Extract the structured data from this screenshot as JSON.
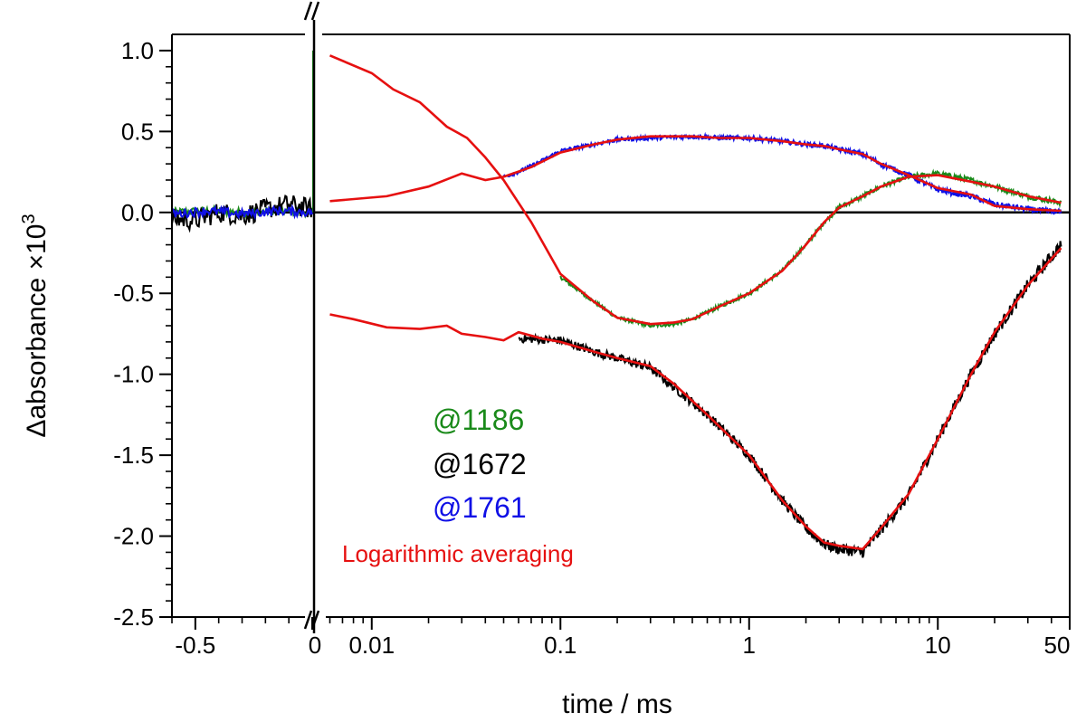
{
  "chart_data": {
    "type": "line",
    "title": "",
    "xlabel": "time / ms",
    "ylabel_main": "Δabsorbance ×10",
    "ylabel_exp": "3",
    "x_scale": "broken: linear pre-trigger segment, logarithmic post-trigger segment",
    "xlim_linear": [
      -0.6,
      0
    ],
    "xlim_log": [
      0.005,
      50
    ],
    "ylim": [
      -2.5,
      1.1
    ],
    "y_ticks": [
      {
        "value": 1.0,
        "label": "1.0"
      },
      {
        "value": 0.5,
        "label": "0.5"
      },
      {
        "value": 0.0,
        "label": "0.0"
      },
      {
        "value": -0.5,
        "label": "-0.5"
      },
      {
        "value": -1.0,
        "label": "-1.0"
      },
      {
        "value": -1.5,
        "label": "-1.5"
      },
      {
        "value": -2.0,
        "label": "-2.0"
      },
      {
        "value": -2.5,
        "label": "-2.5"
      }
    ],
    "x_ticks_linear": [
      {
        "value": -0.5,
        "label": "-0.5"
      },
      {
        "value": 0,
        "label": "0"
      }
    ],
    "x_ticks_log": [
      {
        "value": 0.01,
        "label": "0.01"
      },
      {
        "value": 0.1,
        "label": "0.1"
      },
      {
        "value": 1,
        "label": "1"
      },
      {
        "value": 10,
        "label": "10"
      },
      {
        "value": 50,
        "label": "50"
      }
    ],
    "series": [
      {
        "name": "@1186",
        "color": "#1a8a1a",
        "pre": [
          [
            -0.6,
            0.0
          ],
          [
            -0.45,
            0.01
          ],
          [
            -0.3,
            0.0
          ],
          [
            -0.15,
            0.01
          ],
          [
            0,
            0.0
          ]
        ],
        "log": [
          [
            0.1,
            -0.4
          ],
          [
            0.15,
            -0.55
          ],
          [
            0.2,
            -0.65
          ],
          [
            0.3,
            -0.7
          ],
          [
            0.4,
            -0.69
          ],
          [
            0.5,
            -0.66
          ],
          [
            0.7,
            -0.58
          ],
          [
            1,
            -0.5
          ],
          [
            1.5,
            -0.36
          ],
          [
            2,
            -0.2
          ],
          [
            2.5,
            -0.06
          ],
          [
            3,
            0.03
          ],
          [
            4,
            0.1
          ],
          [
            5,
            0.16
          ],
          [
            7,
            0.22
          ],
          [
            10,
            0.24
          ],
          [
            15,
            0.2
          ],
          [
            20,
            0.16
          ],
          [
            30,
            0.1
          ],
          [
            45,
            0.06
          ]
        ],
        "noise": 0.016
      },
      {
        "name": "@1672",
        "color": "#000000",
        "pre": [
          [
            -0.6,
            -0.04
          ],
          [
            -0.5,
            -0.05
          ],
          [
            -0.4,
            0.0
          ],
          [
            -0.3,
            -0.02
          ],
          [
            -0.2,
            0.02
          ],
          [
            -0.1,
            0.05
          ],
          [
            0,
            0.02
          ]
        ],
        "log": [
          [
            0.06,
            -0.78
          ],
          [
            0.1,
            -0.79
          ],
          [
            0.15,
            -0.86
          ],
          [
            0.2,
            -0.9
          ],
          [
            0.3,
            -0.96
          ],
          [
            0.4,
            -1.08
          ],
          [
            0.6,
            -1.25
          ],
          [
            1,
            -1.5
          ],
          [
            1.5,
            -1.78
          ],
          [
            2,
            -1.95
          ],
          [
            2.5,
            -2.05
          ],
          [
            3,
            -2.08
          ],
          [
            4,
            -2.1
          ],
          [
            5,
            -1.96
          ],
          [
            7,
            -1.75
          ],
          [
            10,
            -1.4
          ],
          [
            15,
            -1.0
          ],
          [
            20,
            -0.75
          ],
          [
            30,
            -0.45
          ],
          [
            45,
            -0.2
          ]
        ],
        "noise": 0.04
      },
      {
        "name": "@1761",
        "color": "#1010e6",
        "pre": [
          [
            -0.6,
            -0.01
          ],
          [
            -0.45,
            0.01
          ],
          [
            -0.3,
            -0.01
          ],
          [
            -0.15,
            0.01
          ],
          [
            0,
            0.0
          ]
        ],
        "log": [
          [
            0.05,
            0.22
          ],
          [
            0.06,
            0.25
          ],
          [
            0.08,
            0.32
          ],
          [
            0.1,
            0.38
          ],
          [
            0.15,
            0.42
          ],
          [
            0.2,
            0.45
          ],
          [
            0.3,
            0.46
          ],
          [
            0.5,
            0.47
          ],
          [
            0.7,
            0.46
          ],
          [
            1,
            0.46
          ],
          [
            1.5,
            0.44
          ],
          [
            2,
            0.42
          ],
          [
            2.5,
            0.41
          ],
          [
            3,
            0.39
          ],
          [
            4,
            0.36
          ],
          [
            5,
            0.3
          ],
          [
            7,
            0.23
          ],
          [
            10,
            0.14
          ],
          [
            15,
            0.1
          ],
          [
            20,
            0.05
          ],
          [
            30,
            0.02
          ],
          [
            45,
            0.0
          ]
        ],
        "noise": 0.018
      }
    ],
    "averaged": {
      "name": "Logarithmic averaging",
      "color": "#e61010",
      "lines": [
        [
          [
            0.006,
            0.97
          ],
          [
            0.01,
            0.86
          ],
          [
            0.013,
            0.76
          ],
          [
            0.018,
            0.68
          ],
          [
            0.025,
            0.53
          ],
          [
            0.032,
            0.46
          ],
          [
            0.04,
            0.34
          ],
          [
            0.05,
            0.2
          ],
          [
            0.07,
            -0.06
          ],
          [
            0.1,
            -0.38
          ],
          [
            0.15,
            -0.55
          ],
          [
            0.2,
            -0.65
          ],
          [
            0.3,
            -0.69
          ],
          [
            0.4,
            -0.68
          ],
          [
            0.5,
            -0.66
          ],
          [
            0.7,
            -0.58
          ],
          [
            1,
            -0.5
          ],
          [
            1.5,
            -0.36
          ],
          [
            2,
            -0.2
          ],
          [
            2.5,
            -0.06
          ],
          [
            3,
            0.03
          ],
          [
            4,
            0.1
          ],
          [
            5,
            0.16
          ],
          [
            7,
            0.22
          ],
          [
            10,
            0.23
          ],
          [
            15,
            0.19
          ],
          [
            20,
            0.16
          ],
          [
            30,
            0.1
          ],
          [
            45,
            0.06
          ]
        ],
        [
          [
            0.006,
            0.07
          ],
          [
            0.012,
            0.1
          ],
          [
            0.02,
            0.16
          ],
          [
            0.03,
            0.24
          ],
          [
            0.04,
            0.2
          ],
          [
            0.05,
            0.22
          ],
          [
            0.07,
            0.28
          ],
          [
            0.1,
            0.37
          ],
          [
            0.15,
            0.42
          ],
          [
            0.2,
            0.45
          ],
          [
            0.3,
            0.47
          ],
          [
            0.5,
            0.47
          ],
          [
            0.7,
            0.46
          ],
          [
            1,
            0.46
          ],
          [
            1.5,
            0.44
          ],
          [
            2,
            0.42
          ],
          [
            2.5,
            0.41
          ],
          [
            3,
            0.39
          ],
          [
            4,
            0.36
          ],
          [
            5,
            0.3
          ],
          [
            7,
            0.23
          ],
          [
            10,
            0.15
          ],
          [
            15,
            0.11
          ],
          [
            20,
            0.04
          ],
          [
            30,
            0.02
          ],
          [
            45,
            0.01
          ]
        ],
        [
          [
            0.006,
            -0.63
          ],
          [
            0.008,
            -0.66
          ],
          [
            0.012,
            -0.71
          ],
          [
            0.018,
            -0.72
          ],
          [
            0.025,
            -0.7
          ],
          [
            0.03,
            -0.75
          ],
          [
            0.04,
            -0.77
          ],
          [
            0.05,
            -0.79
          ],
          [
            0.06,
            -0.74
          ],
          [
            0.08,
            -0.78
          ],
          [
            0.1,
            -0.8
          ],
          [
            0.15,
            -0.86
          ],
          [
            0.2,
            -0.9
          ],
          [
            0.3,
            -0.95
          ],
          [
            0.4,
            -1.06
          ],
          [
            0.6,
            -1.25
          ],
          [
            1,
            -1.5
          ],
          [
            1.5,
            -1.78
          ],
          [
            2,
            -1.94
          ],
          [
            2.5,
            -2.04
          ],
          [
            3,
            -2.06
          ],
          [
            4,
            -2.08
          ],
          [
            5,
            -1.95
          ],
          [
            7,
            -1.74
          ],
          [
            10,
            -1.4
          ],
          [
            15,
            -1.0
          ],
          [
            20,
            -0.74
          ],
          [
            30,
            -0.45
          ],
          [
            45,
            -0.22
          ]
        ]
      ]
    },
    "legend": [
      {
        "label": "@1186",
        "color": "#1a8a1a"
      },
      {
        "label": "@1672",
        "color": "#000000"
      },
      {
        "label": "@1761",
        "color": "#1010e6"
      }
    ],
    "annotation": {
      "label": "Logarithmic averaging",
      "color": "#e61010"
    },
    "zero_line": 0,
    "legend_position": "center-left"
  }
}
